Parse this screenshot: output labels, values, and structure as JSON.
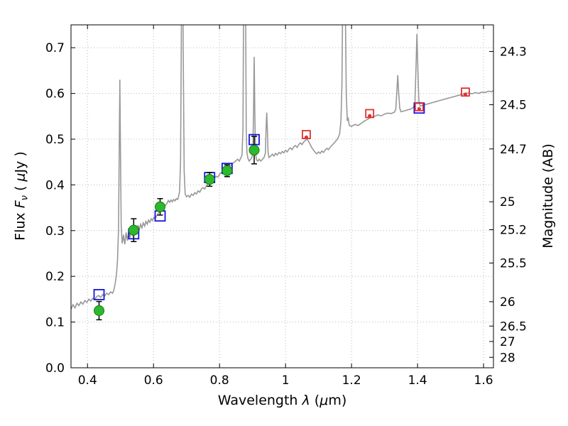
{
  "labels": {
    "x_prefix": "Wavelength  ",
    "x_lambda": "λ",
    "x_paren_open": " (",
    "x_mu": "μ",
    "x_paren_close": "m)",
    "y_prefix": "Flux  ",
    "y_sym": "F",
    "y_sub": "ν",
    "y_mid": " ( ",
    "y_mu": "μ",
    "y_suffix": "Jy )",
    "y_right": "Magnitude (AB)"
  },
  "chart_data": {
    "type": "line",
    "title": "",
    "xlabel": "Wavelength λ (μm)",
    "ylabel": "Flux Fν ( μJy )",
    "ylabel_right": "Magnitude (AB)",
    "xlim": [
      0.35,
      1.63
    ],
    "ylim": [
      0.0,
      0.75
    ],
    "grid": true,
    "grid_style": "dotted",
    "grid_color": "#b8b8b8",
    "axes": {
      "x": {
        "tick_values": [
          0.4,
          0.6,
          0.8,
          1.0,
          1.2,
          1.4,
          1.6
        ],
        "tick_labels": [
          "0.4",
          "0.6",
          "0.8",
          "1",
          "1.2",
          "1.4",
          "1.6"
        ]
      },
      "y_left": {
        "tick_values": [
          0.0,
          0.1,
          0.2,
          0.3,
          0.4,
          0.5,
          0.6,
          0.7
        ],
        "tick_labels": [
          "0.0",
          "0.1",
          "0.2",
          "0.3",
          "0.4",
          "0.5",
          "0.6",
          "0.7"
        ]
      },
      "y_right": {
        "tick_flux": [
          0.6918,
          0.5754,
          0.4786,
          0.3631,
          0.302,
          0.2291,
          0.1445,
          0.0912,
          0.0575,
          0.0229
        ],
        "tick_labels": [
          "24.3",
          "24.5",
          "24.7",
          "25",
          "25.2",
          "25.5",
          "26",
          "26.5",
          "27",
          "28"
        ]
      }
    },
    "series": [
      {
        "name": "galaxy-spectrum",
        "type": "line",
        "color": "#989898",
        "width": 1.6,
        "points": [
          [
            0.35,
            0.128
          ],
          [
            0.356,
            0.138
          ],
          [
            0.362,
            0.131
          ],
          [
            0.368,
            0.141
          ],
          [
            0.374,
            0.136
          ],
          [
            0.38,
            0.144
          ],
          [
            0.386,
            0.139
          ],
          [
            0.392,
            0.147
          ],
          [
            0.398,
            0.143
          ],
          [
            0.404,
            0.15
          ],
          [
            0.41,
            0.146
          ],
          [
            0.416,
            0.152
          ],
          [
            0.422,
            0.149
          ],
          [
            0.428,
            0.156
          ],
          [
            0.434,
            0.158
          ],
          [
            0.44,
            0.154
          ],
          [
            0.446,
            0.16
          ],
          [
            0.452,
            0.157
          ],
          [
            0.458,
            0.163
          ],
          [
            0.464,
            0.16
          ],
          [
            0.47,
            0.166
          ],
          [
            0.476,
            0.163
          ],
          [
            0.48,
            0.17
          ],
          [
            0.484,
            0.185
          ],
          [
            0.488,
            0.205
          ],
          [
            0.491,
            0.235
          ],
          [
            0.494,
            0.3
          ],
          [
            0.496,
            0.47
          ],
          [
            0.498,
            0.63
          ],
          [
            0.5,
            0.47
          ],
          [
            0.502,
            0.31
          ],
          [
            0.505,
            0.272
          ],
          [
            0.509,
            0.291
          ],
          [
            0.513,
            0.27
          ],
          [
            0.517,
            0.296
          ],
          [
            0.521,
            0.278
          ],
          [
            0.525,
            0.3
          ],
          [
            0.529,
            0.285
          ],
          [
            0.533,
            0.303
          ],
          [
            0.537,
            0.29
          ],
          [
            0.541,
            0.299
          ],
          [
            0.545,
            0.31
          ],
          [
            0.549,
            0.296
          ],
          [
            0.553,
            0.312
          ],
          [
            0.557,
            0.302
          ],
          [
            0.561,
            0.314
          ],
          [
            0.565,
            0.306
          ],
          [
            0.569,
            0.317
          ],
          [
            0.573,
            0.31
          ],
          [
            0.577,
            0.32
          ],
          [
            0.581,
            0.314
          ],
          [
            0.585,
            0.323
          ],
          [
            0.589,
            0.318
          ],
          [
            0.593,
            0.326
          ],
          [
            0.597,
            0.322
          ],
          [
            0.601,
            0.329
          ],
          [
            0.605,
            0.325
          ],
          [
            0.609,
            0.332
          ],
          [
            0.613,
            0.336
          ],
          [
            0.617,
            0.341
          ],
          [
            0.621,
            0.346
          ],
          [
            0.625,
            0.35
          ],
          [
            0.629,
            0.346
          ],
          [
            0.633,
            0.352
          ],
          [
            0.637,
            0.356
          ],
          [
            0.641,
            0.36
          ],
          [
            0.645,
            0.366
          ],
          [
            0.649,
            0.362
          ],
          [
            0.653,
            0.367
          ],
          [
            0.657,
            0.363
          ],
          [
            0.661,
            0.368
          ],
          [
            0.665,
            0.365
          ],
          [
            0.669,
            0.37
          ],
          [
            0.673,
            0.368
          ],
          [
            0.675,
            0.372
          ],
          [
            0.679,
            0.385
          ],
          [
            0.682,
            0.45
          ],
          [
            0.684,
            0.7
          ],
          [
            0.686,
            0.98
          ],
          [
            0.688,
            0.98
          ],
          [
            0.69,
            0.7
          ],
          [
            0.693,
            0.43
          ],
          [
            0.696,
            0.38
          ],
          [
            0.7,
            0.374
          ],
          [
            0.705,
            0.377
          ],
          [
            0.71,
            0.373
          ],
          [
            0.715,
            0.38
          ],
          [
            0.72,
            0.377
          ],
          [
            0.725,
            0.383
          ],
          [
            0.73,
            0.38
          ],
          [
            0.735,
            0.387
          ],
          [
            0.74,
            0.384
          ],
          [
            0.745,
            0.391
          ],
          [
            0.75,
            0.394
          ],
          [
            0.755,
            0.391
          ],
          [
            0.76,
            0.398
          ],
          [
            0.765,
            0.403
          ],
          [
            0.77,
            0.408
          ],
          [
            0.775,
            0.412
          ],
          [
            0.78,
            0.41
          ],
          [
            0.785,
            0.415
          ],
          [
            0.79,
            0.419
          ],
          [
            0.795,
            0.417
          ],
          [
            0.8,
            0.423
          ],
          [
            0.805,
            0.427
          ],
          [
            0.81,
            0.425
          ],
          [
            0.815,
            0.431
          ],
          [
            0.82,
            0.434
          ],
          [
            0.825,
            0.437
          ],
          [
            0.83,
            0.44
          ],
          [
            0.835,
            0.443
          ],
          [
            0.84,
            0.447
          ],
          [
            0.845,
            0.45
          ],
          [
            0.85,
            0.453
          ],
          [
            0.855,
            0.456
          ],
          [
            0.86,
            0.452
          ],
          [
            0.864,
            0.458
          ],
          [
            0.868,
            0.465
          ],
          [
            0.871,
            0.52
          ],
          [
            0.873,
            0.8
          ],
          [
            0.875,
            0.98
          ],
          [
            0.877,
            0.98
          ],
          [
            0.879,
            0.8
          ],
          [
            0.881,
            0.52
          ],
          [
            0.883,
            0.47
          ],
          [
            0.886,
            0.458
          ],
          [
            0.89,
            0.452
          ],
          [
            0.894,
            0.456
          ],
          [
            0.898,
            0.46
          ],
          [
            0.901,
            0.47
          ],
          [
            0.903,
            0.56
          ],
          [
            0.905,
            0.68
          ],
          [
            0.907,
            0.56
          ],
          [
            0.909,
            0.47
          ],
          [
            0.912,
            0.455
          ],
          [
            0.916,
            0.452
          ],
          [
            0.92,
            0.456
          ],
          [
            0.925,
            0.452
          ],
          [
            0.93,
            0.456
          ],
          [
            0.935,
            0.46
          ],
          [
            0.939,
            0.47
          ],
          [
            0.941,
            0.52
          ],
          [
            0.943,
            0.558
          ],
          [
            0.945,
            0.52
          ],
          [
            0.947,
            0.472
          ],
          [
            0.95,
            0.46
          ],
          [
            0.955,
            0.463
          ],
          [
            0.96,
            0.467
          ],
          [
            0.965,
            0.463
          ],
          [
            0.97,
            0.469
          ],
          [
            0.975,
            0.465
          ],
          [
            0.98,
            0.471
          ],
          [
            0.985,
            0.468
          ],
          [
            0.99,
            0.473
          ],
          [
            0.995,
            0.47
          ],
          [
            1.0,
            0.476
          ],
          [
            1.005,
            0.472
          ],
          [
            1.01,
            0.478
          ],
          [
            1.015,
            0.481
          ],
          [
            1.02,
            0.477
          ],
          [
            1.025,
            0.483
          ],
          [
            1.03,
            0.486
          ],
          [
            1.035,
            0.482
          ],
          [
            1.04,
            0.488
          ],
          [
            1.045,
            0.492
          ],
          [
            1.05,
            0.488
          ],
          [
            1.055,
            0.494
          ],
          [
            1.06,
            0.497
          ],
          [
            1.065,
            0.5
          ],
          [
            1.07,
            0.495
          ],
          [
            1.075,
            0.488
          ],
          [
            1.08,
            0.481
          ],
          [
            1.085,
            0.476
          ],
          [
            1.09,
            0.471
          ],
          [
            1.095,
            0.468
          ],
          [
            1.1,
            0.472
          ],
          [
            1.105,
            0.469
          ],
          [
            1.11,
            0.474
          ],
          [
            1.115,
            0.471
          ],
          [
            1.12,
            0.476
          ],
          [
            1.125,
            0.48
          ],
          [
            1.13,
            0.477
          ],
          [
            1.135,
            0.482
          ],
          [
            1.14,
            0.486
          ],
          [
            1.145,
            0.49
          ],
          [
            1.15,
            0.494
          ],
          [
            1.155,
            0.498
          ],
          [
            1.16,
            0.504
          ],
          [
            1.164,
            0.512
          ],
          [
            1.168,
            0.54
          ],
          [
            1.171,
            0.62
          ],
          [
            1.174,
            0.86
          ],
          [
            1.176,
            0.98
          ],
          [
            1.178,
            0.98
          ],
          [
            1.181,
            0.8
          ],
          [
            1.184,
            0.6
          ],
          [
            1.187,
            0.54
          ],
          [
            1.19,
            0.545
          ],
          [
            1.193,
            0.53
          ],
          [
            1.2,
            0.528
          ],
          [
            1.21,
            0.532
          ],
          [
            1.22,
            0.53
          ],
          [
            1.23,
            0.535
          ],
          [
            1.24,
            0.54
          ],
          [
            1.25,
            0.544
          ],
          [
            1.26,
            0.548
          ],
          [
            1.27,
            0.55
          ],
          [
            1.28,
            0.553
          ],
          [
            1.29,
            0.551
          ],
          [
            1.3,
            0.555
          ],
          [
            1.31,
            0.557
          ],
          [
            1.32,
            0.556
          ],
          [
            1.33,
            0.559
          ],
          [
            1.334,
            0.565
          ],
          [
            1.337,
            0.6
          ],
          [
            1.34,
            0.64
          ],
          [
            1.343,
            0.6
          ],
          [
            1.346,
            0.568
          ],
          [
            1.35,
            0.56
          ],
          [
            1.36,
            0.562
          ],
          [
            1.37,
            0.564
          ],
          [
            1.38,
            0.566
          ],
          [
            1.388,
            0.57
          ],
          [
            1.392,
            0.58
          ],
          [
            1.395,
            0.65
          ],
          [
            1.398,
            0.73
          ],
          [
            1.401,
            0.65
          ],
          [
            1.404,
            0.585
          ],
          [
            1.408,
            0.572
          ],
          [
            1.415,
            0.574
          ],
          [
            1.425,
            0.576
          ],
          [
            1.435,
            0.578
          ],
          [
            1.445,
            0.58
          ],
          [
            1.455,
            0.582
          ],
          [
            1.465,
            0.584
          ],
          [
            1.475,
            0.586
          ],
          [
            1.485,
            0.588
          ],
          [
            1.495,
            0.59
          ],
          [
            1.505,
            0.592
          ],
          [
            1.515,
            0.594
          ],
          [
            1.525,
            0.596
          ],
          [
            1.535,
            0.598
          ],
          [
            1.545,
            0.6
          ],
          [
            1.555,
            0.601
          ],
          [
            1.565,
            0.599
          ],
          [
            1.575,
            0.602
          ],
          [
            1.585,
            0.6
          ],
          [
            1.595,
            0.603
          ],
          [
            1.605,
            0.602
          ],
          [
            1.615,
            0.605
          ],
          [
            1.625,
            0.604
          ],
          [
            1.63,
            0.606
          ]
        ]
      },
      {
        "name": "model-photometry-blue-squares",
        "type": "scatter",
        "marker": "open-square",
        "edge": "#1515dd",
        "size": 14,
        "points": [
          [
            0.435,
            0.16
          ],
          [
            0.54,
            0.293
          ],
          [
            0.62,
            0.332
          ],
          [
            0.77,
            0.416
          ],
          [
            0.823,
            0.436
          ],
          [
            0.905,
            0.499
          ],
          [
            1.405,
            0.568
          ]
        ]
      },
      {
        "name": "model-photometry-red-squares",
        "type": "scatter",
        "marker": "open-square",
        "edge": "#e03030",
        "size": 11,
        "points": [
          [
            1.063,
            0.51
          ],
          [
            1.255,
            0.556
          ],
          [
            1.405,
            0.571
          ],
          [
            1.545,
            0.603
          ]
        ]
      },
      {
        "name": "model-spectrum-dots",
        "type": "scatter",
        "marker": "dot",
        "fill": "#e03030",
        "size": 5,
        "points": [
          [
            1.063,
            0.504
          ],
          [
            1.255,
            0.551
          ],
          [
            1.405,
            0.566
          ],
          [
            1.545,
            0.598
          ]
        ]
      },
      {
        "name": "observed-photometry-green-circles",
        "type": "scatter",
        "marker": "circle",
        "fill": "#2db92d",
        "edge": "#117a11",
        "error_color": "#000000",
        "size": 14,
        "points": [
          [
            0.435,
            0.125,
            0.02
          ],
          [
            0.54,
            0.301,
            0.025
          ],
          [
            0.62,
            0.352,
            0.018
          ],
          [
            0.77,
            0.412,
            0.015
          ],
          [
            0.823,
            0.431,
            0.013
          ],
          [
            0.905,
            0.476,
            0.03
          ]
        ]
      }
    ]
  }
}
